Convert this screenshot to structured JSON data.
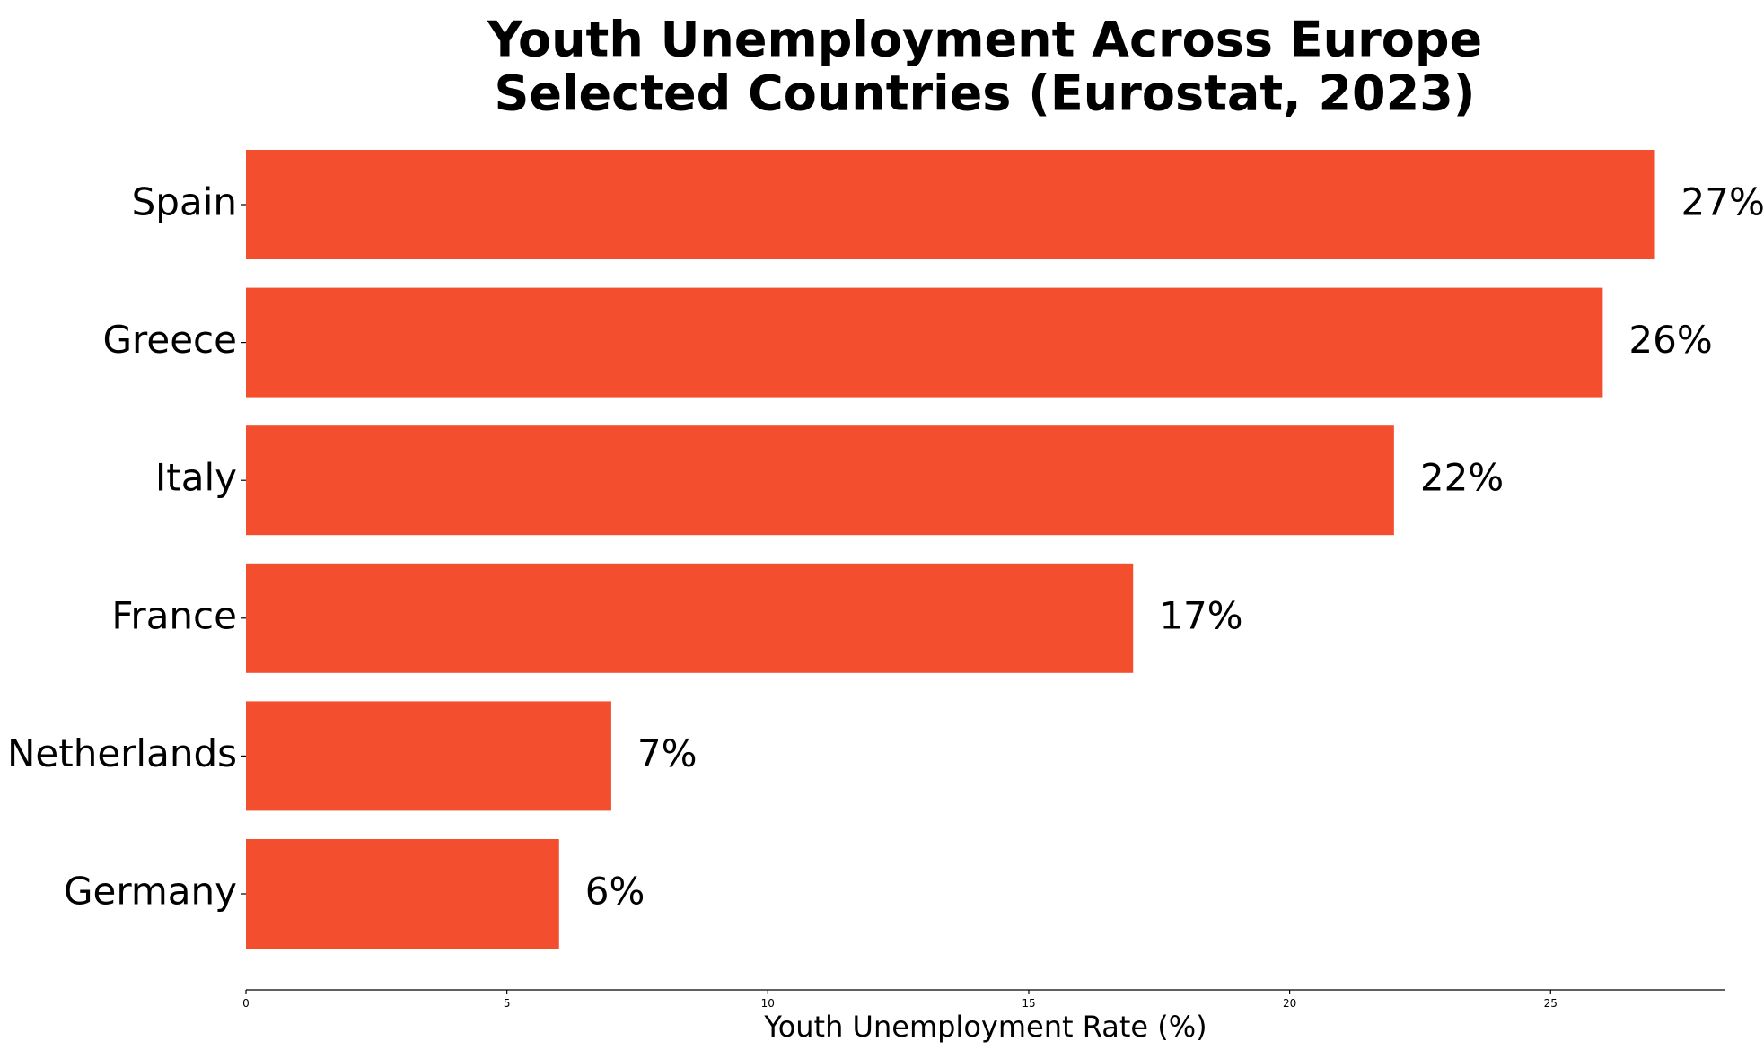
{
  "chart_data": {
    "type": "bar",
    "orientation": "horizontal",
    "title_lines": [
      "Youth Unemployment Across Europe",
      "Selected Countries (Eurostat, 2023)"
    ],
    "categories": [
      "Spain",
      "Greece",
      "Italy",
      "France",
      "Netherlands",
      "Germany"
    ],
    "values": [
      27,
      26,
      22,
      17,
      7,
      6
    ],
    "value_labels": [
      "27%",
      "26%",
      "22%",
      "17%",
      "7%",
      "6%"
    ],
    "xlabel": "Youth Unemployment Rate (%)",
    "ylabel": "",
    "xlim": [
      0,
      28.35
    ],
    "x_ticks": [
      0,
      5,
      10,
      15,
      20,
      25
    ],
    "x_tick_labels": [
      "0",
      "5",
      "10",
      "15",
      "20",
      "25"
    ],
    "grid": false,
    "legend": "none",
    "bar_color": "#f34f2f"
  }
}
